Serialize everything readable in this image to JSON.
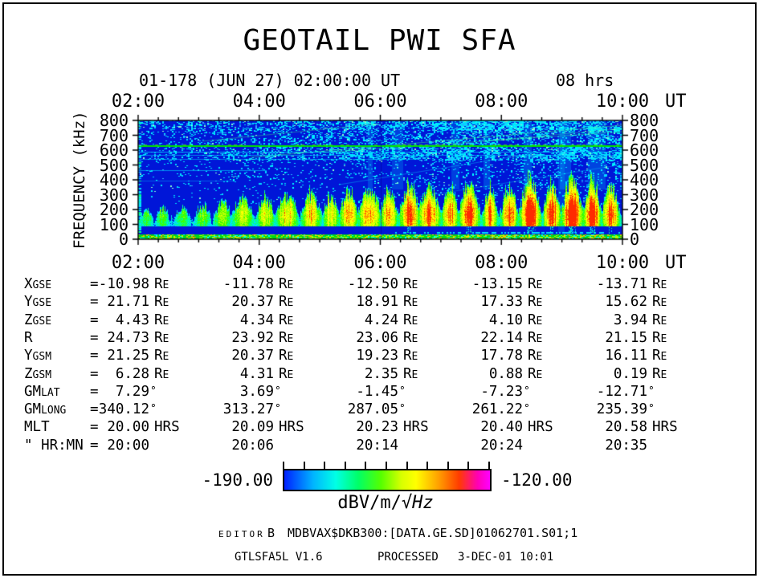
{
  "header": {
    "title": "GEOTAIL PWI SFA",
    "subtitle_left": "01-178 (JUN 27) 02:00:00 UT",
    "subtitle_right": "08 hrs"
  },
  "chart_data": {
    "type": "heatmap",
    "title": "GEOTAIL PWI SFA",
    "subtitle": "01-178 (JUN 27) 02:00:00 UT, duration 08 hrs",
    "x_axis": {
      "unit": "UT",
      "ticks": [
        "02:00",
        "04:00",
        "06:00",
        "08:00",
        "10:00"
      ],
      "minor_tick_minutes": 20,
      "range_hours": 8
    },
    "y_axis": {
      "label": "FREQUENCY (kHz)",
      "ticks": [
        0,
        100,
        200,
        300,
        400,
        500,
        600,
        700,
        800
      ],
      "range": [
        0,
        800
      ]
    },
    "colorbar": {
      "min": -190.0,
      "max": -120.0,
      "min_label": "-190.00",
      "max_label": "-120.00",
      "unit_main": "dBV/m/",
      "unit_italic": "√Hz",
      "tick_count": 11,
      "colors": [
        "#0020ff",
        "#00b4ff",
        "#00ffe6",
        "#00ff66",
        "#55ff00",
        "#d8ff00",
        "#ffff00",
        "#ffa000",
        "#ff3c00",
        "#ff00b4",
        "#ff00ff"
      ]
    },
    "features": [
      {
        "name": "low-frequency-emission-band",
        "freq_khz": [
          100,
          420
        ],
        "desc": "quasi-periodic bursts, green/yellow with orange-red cores intensifying after 07:30 UT, peak near 150-250 kHz"
      },
      {
        "name": "narrowband-line",
        "freq_khz": [
          615,
          630
        ],
        "desc": "continuous bright green horizontal line across entire interval"
      },
      {
        "name": "broadband-speckle",
        "freq_khz": [
          350,
          800
        ],
        "desc": "cyan speckled noise, densest 640-800 kHz and below the green line, density increasing toward 10:00 UT"
      },
      {
        "name": "thin-horizontal-lines",
        "freq_khz": [
          460,
          590
        ],
        "desc": "several faint narrowband cyan lines"
      },
      {
        "name": "bottom-band",
        "freq_khz": [
          0,
          25
        ],
        "desc": "continuous green/yellow band along the 0 kHz edge"
      }
    ]
  },
  "ephemeris": {
    "eq": "=",
    "column_times": [
      "02:00",
      "04:00",
      "06:00",
      "08:00",
      "10:00"
    ],
    "rows": [
      {
        "label": "X",
        "label_sub": "GSE",
        "unit": "RE",
        "values": [
          "-10.98",
          "-11.78",
          "-12.50",
          "-13.15",
          "-13.71"
        ]
      },
      {
        "label": "Y",
        "label_sub": "GSE",
        "unit": "RE",
        "values": [
          "21.71",
          "20.37",
          "18.91",
          "17.33",
          "15.62"
        ]
      },
      {
        "label": "Z",
        "label_sub": "GSE",
        "unit": "RE",
        "values": [
          "4.43",
          "4.34",
          "4.24",
          "4.10",
          "3.94"
        ]
      },
      {
        "label": "R",
        "label_sub": "",
        "unit": "RE",
        "values": [
          "24.73",
          "23.92",
          "23.06",
          "22.14",
          "21.15"
        ]
      },
      {
        "label": "Y",
        "label_sub": "GSM",
        "unit": "RE",
        "values": [
          "21.25",
          "20.37",
          "19.23",
          "17.78",
          "16.11"
        ]
      },
      {
        "label": "Z",
        "label_sub": "GSM",
        "unit": "RE",
        "values": [
          "6.28",
          "4.31",
          "2.35",
          "0.88",
          "0.19"
        ]
      },
      {
        "label": "GM",
        "label_sub": "LAT",
        "unit": "°",
        "values": [
          "7.29",
          "3.69",
          "-1.45",
          "-7.23",
          "-12.71"
        ]
      },
      {
        "label": "GM",
        "label_sub": "LONG",
        "unit": "°",
        "values": [
          "340.12",
          "313.27",
          "287.05",
          "261.22",
          "235.39"
        ]
      },
      {
        "label": "MLT",
        "label_sub": "",
        "unit": "HRS",
        "values": [
          "20.00",
          "20.09",
          "20.23",
          "20.40",
          "20.58"
        ]
      },
      {
        "label": "\" HR:MN",
        "label_sub": "",
        "unit": "",
        "values": [
          "20:00",
          "20:06",
          "20:14",
          "20:24",
          "20:35"
        ]
      }
    ]
  },
  "footer": {
    "editor_label": "EDITOR",
    "editor_value": "B",
    "file_path": "MDBVAX$DKB300:[DATA.GE.SD]01062701.S01;1",
    "program": "GTLSFA5L V1.6",
    "processed_label": "PROCESSED",
    "processed_date": "3-DEC-01",
    "processed_time": "10:01"
  }
}
